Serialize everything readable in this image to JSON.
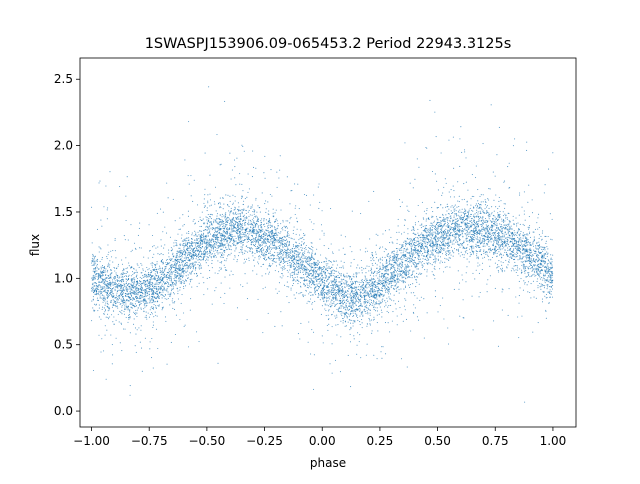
{
  "chart_data": {
    "type": "scatter",
    "title": "1SWASPJ153906.09-065453.2 Period 22943.3125s",
    "xlabel": "phase",
    "ylabel": "flux",
    "xlim": [
      -1.05,
      1.1
    ],
    "ylim": [
      -0.12,
      2.66
    ],
    "xticks": [
      -1.0,
      -0.75,
      -0.5,
      -0.25,
      0.0,
      0.25,
      0.5,
      0.75,
      1.0
    ],
    "xtick_labels": [
      "−1.00",
      "−0.75",
      "−0.50",
      "−0.25",
      "0.00",
      "0.25",
      "0.50",
      "0.75",
      "1.00"
    ],
    "yticks": [
      0.0,
      0.5,
      1.0,
      1.5,
      2.0,
      2.5
    ],
    "ytick_labels": [
      "0.0",
      "0.5",
      "1.0",
      "1.5",
      "2.0",
      "2.5"
    ],
    "grid": false,
    "legend": "none",
    "color": "#1f77b4",
    "phase_range": [
      -1.0,
      1.0
    ],
    "series": [
      {
        "description_of_trend_points": [
          [
            -1.0,
            1.0
          ],
          [
            -0.9,
            0.92
          ],
          [
            -0.8,
            0.88
          ],
          [
            -0.7,
            0.97
          ],
          [
            -0.6,
            1.13
          ],
          [
            -0.5,
            1.28
          ],
          [
            -0.4,
            1.36
          ],
          [
            -0.35,
            1.37
          ],
          [
            -0.3,
            1.35
          ],
          [
            -0.2,
            1.27
          ],
          [
            -0.1,
            1.13
          ],
          [
            0.0,
            0.98
          ],
          [
            0.1,
            0.87
          ],
          [
            0.15,
            0.86
          ],
          [
            0.2,
            0.89
          ],
          [
            0.3,
            1.02
          ],
          [
            0.4,
            1.2
          ],
          [
            0.5,
            1.31
          ],
          [
            0.6,
            1.37
          ],
          [
            0.65,
            1.38
          ],
          [
            0.7,
            1.36
          ],
          [
            0.8,
            1.29
          ],
          [
            0.9,
            1.17
          ],
          [
            1.0,
            1.03
          ]
        ]
      }
    ]
  }
}
